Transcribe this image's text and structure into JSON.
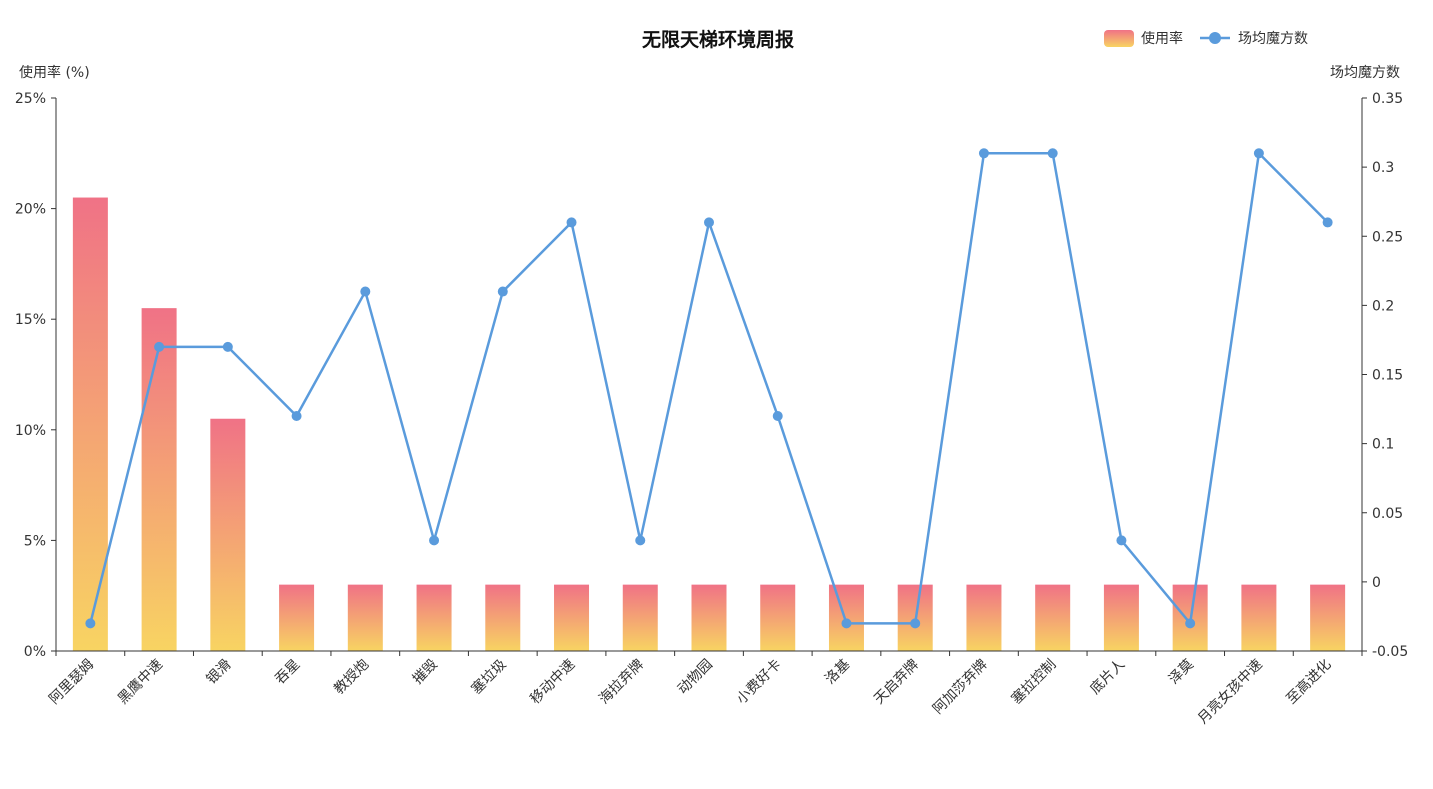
{
  "chart_data": {
    "type": "bar",
    "title": "无限天梯环境周报",
    "categories": [
      "阿里瑟姆",
      "黑鹰中速",
      "银滑",
      "吞星",
      "教授炮",
      "摧毁",
      "塞垃圾",
      "移动中速",
      "海拉弃牌",
      "动物园",
      "小费好卡",
      "洛基",
      "天启弃牌",
      "阿加莎弃牌",
      "塞拉控制",
      "底片人",
      "泽莫",
      "月亮女孩中速",
      "至高进化"
    ],
    "series": [
      {
        "name": "使用率",
        "type": "bar",
        "axis": "left",
        "values": [
          20.5,
          15.5,
          10.5,
          3,
          3,
          3,
          3,
          3,
          3,
          3,
          3,
          3,
          3,
          3,
          3,
          3,
          3,
          3,
          3
        ]
      },
      {
        "name": "场均魔方数",
        "type": "line",
        "axis": "right",
        "values": [
          -0.03,
          0.17,
          0.17,
          0.12,
          0.21,
          0.03,
          0.21,
          0.26,
          0.03,
          0.26,
          0.12,
          -0.03,
          -0.03,
          0.31,
          0.31,
          0.03,
          -0.03,
          0.31,
          0.26
        ]
      }
    ],
    "yleft": {
      "label": "使用率 (%)",
      "ylim": [
        0,
        25
      ],
      "ticks": [
        0,
        5,
        10,
        15,
        20,
        25
      ],
      "tick_labels": [
        "0%",
        "5%",
        "10%",
        "15%",
        "20%",
        "25%"
      ]
    },
    "yright": {
      "label": "场均魔方数",
      "ylim": [
        -0.05,
        0.35
      ],
      "ticks": [
        -0.05,
        0,
        0.05,
        0.1,
        0.15,
        0.2,
        0.25,
        0.3,
        0.35
      ],
      "tick_labels": [
        "-0.05",
        "0",
        "0.05",
        "0.1",
        "0.15",
        "0.2",
        "0.25",
        "0.3",
        "0.35"
      ]
    },
    "grid": false,
    "legend_placement": "top-right",
    "colors": {
      "bar_top": "#f07286",
      "bar_bottom": "#f8d462",
      "line": "#5a9bdc",
      "axis": "#333333"
    }
  }
}
